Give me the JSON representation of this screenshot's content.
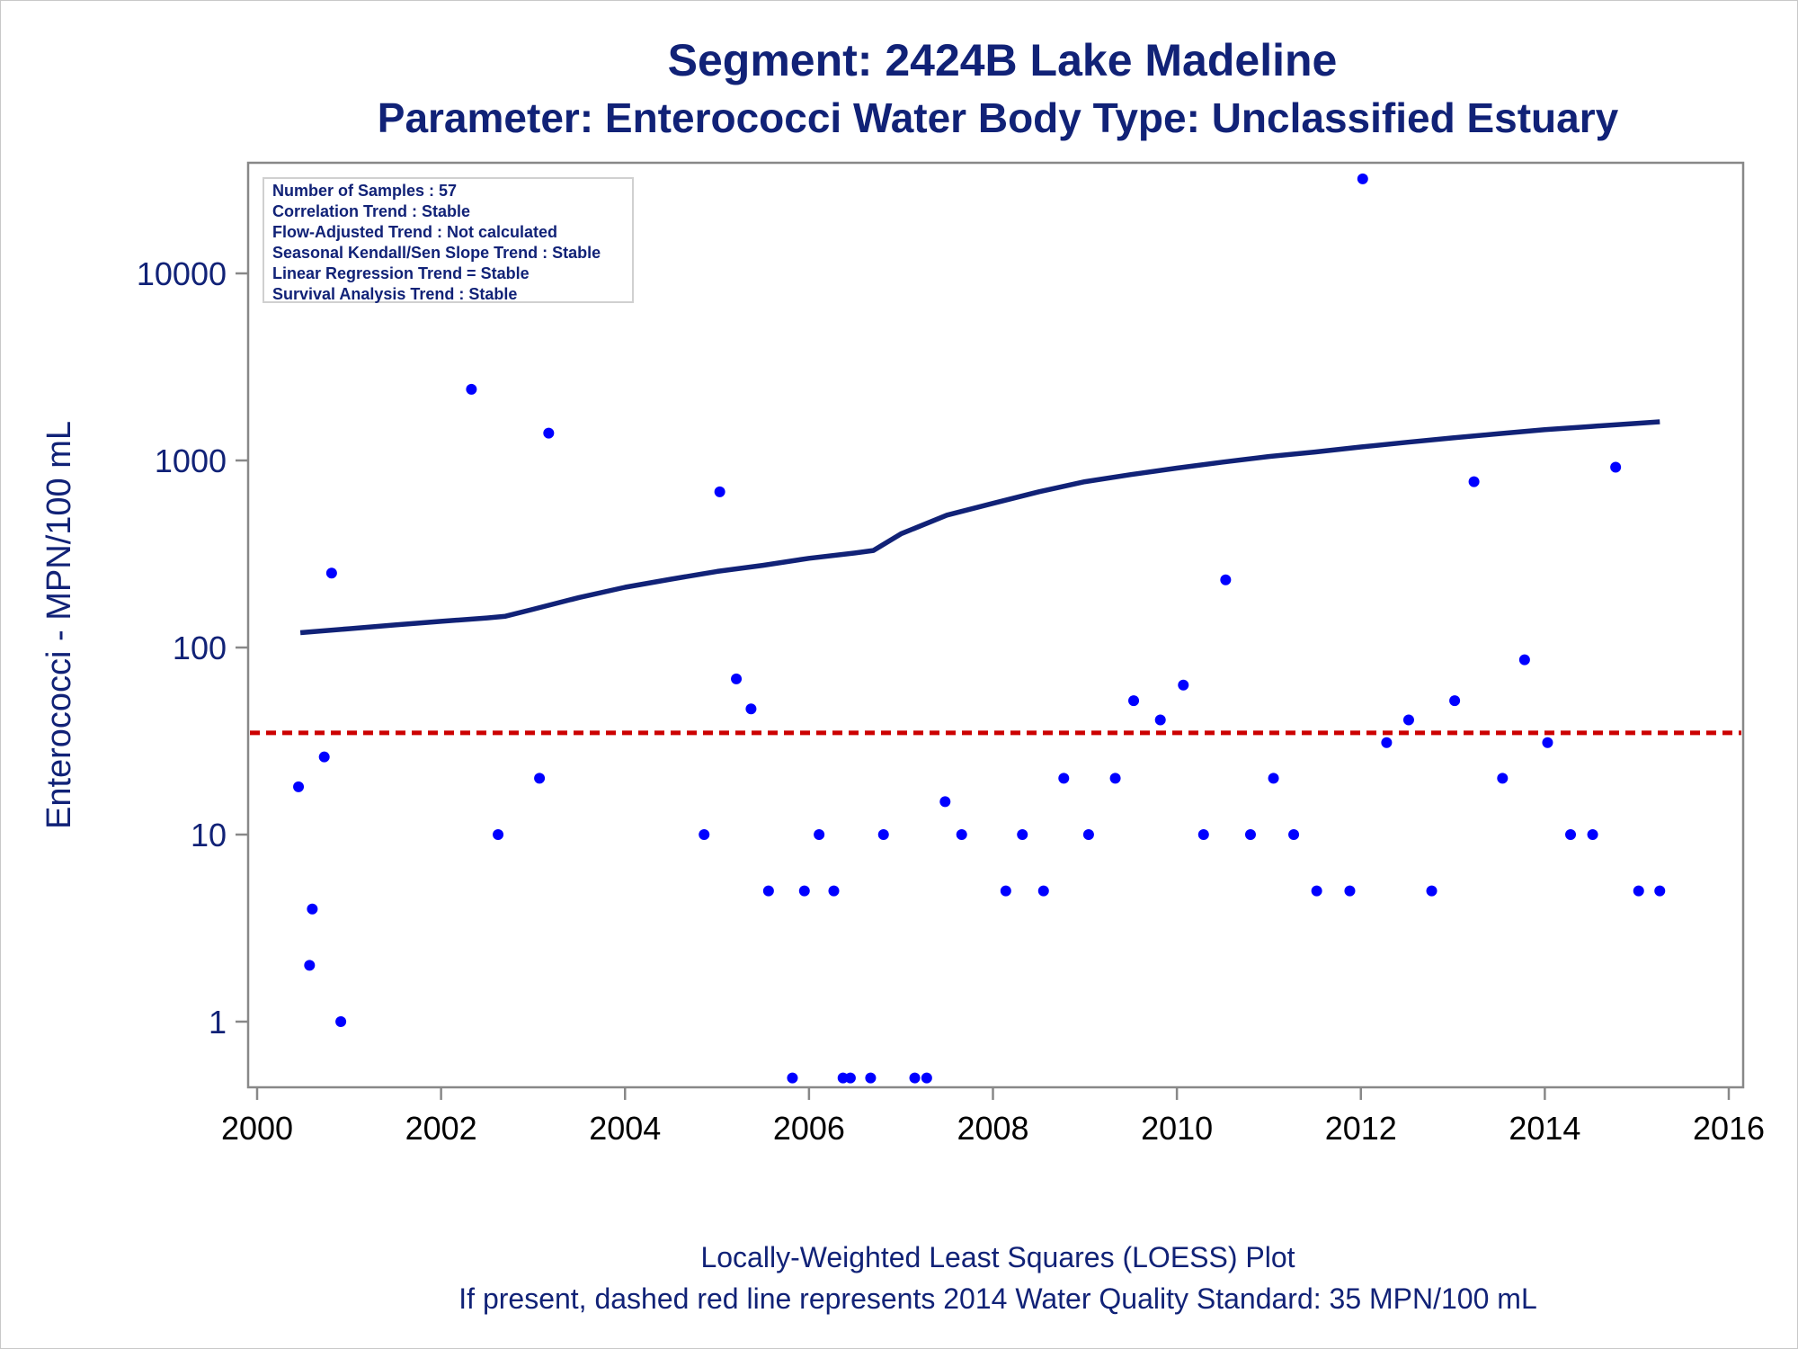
{
  "title": "Segment: 2424B  Lake Madeline",
  "subtitle": "Parameter: Enterococci   Water Body Type: Unclassified Estuary",
  "footnote1": "Locally-Weighted Least Squares (LOESS) Plot",
  "footnote2": "If present, dashed red line represents 2014 Water Quality Standard: 35 MPN/100 mL",
  "stats_box": [
    "Number of Samples : 57",
    "Correlation Trend : Stable",
    "Flow-Adjusted Trend : Not calculated",
    "Seasonal Kendall/Sen Slope Trend : Stable",
    "Linear Regression Trend = Stable",
    "Survival Analysis Trend : Stable"
  ],
  "colors": {
    "text": "#112277",
    "points": "#0000ff",
    "loess": "#112277",
    "standard": "#cc0000",
    "axis": "#888888"
  },
  "chart_data": {
    "type": "scatter",
    "xlabel": "",
    "ylabel": "Enterococci - MPN/100 mL",
    "x_scale": "time",
    "y_scale": "log",
    "xlim": [
      2000,
      2016
    ],
    "ylim": [
      0.45,
      35000
    ],
    "x_ticks": [
      "2000",
      "2002",
      "2004",
      "2006",
      "2008",
      "2010",
      "2012",
      "2014",
      "2016"
    ],
    "y_ticks": [
      "1",
      "10",
      "100",
      "1000",
      "10000"
    ],
    "grid": false,
    "standard_line": {
      "value": 35,
      "style": "dashed",
      "color": "#cc0000"
    },
    "series": [
      {
        "kind": "points",
        "x": [
          2000.45,
          2000.57,
          2000.6,
          2000.73,
          2000.81,
          2000.91,
          2002.33,
          2002.62,
          2003.07,
          2003.17,
          2004.86,
          2005.03,
          2005.21,
          2005.37,
          2005.56,
          2005.82,
          2005.95,
          2006.11,
          2006.27,
          2006.37,
          2006.45,
          2006.67,
          2006.81,
          2007.15,
          2007.28,
          2007.48,
          2007.66,
          2008.14,
          2008.32,
          2008.55,
          2008.77,
          2009.04,
          2009.33,
          2009.53,
          2009.82,
          2010.07,
          2010.29,
          2010.53,
          2010.8,
          2011.05,
          2011.27,
          2011.52,
          2011.88,
          2012.02,
          2012.28,
          2012.52,
          2012.77,
          2013.02,
          2013.23,
          2013.54,
          2013.78,
          2014.03,
          2014.28,
          2014.52,
          2014.77,
          2015.02,
          2015.25
        ],
        "values": [
          18,
          2,
          4,
          26,
          250,
          1,
          2400,
          10,
          20,
          1400,
          10,
          680,
          68,
          47,
          5,
          0.5,
          5,
          10,
          5,
          0.5,
          0.5,
          0.5,
          10,
          0.5,
          0.5,
          15,
          10,
          5,
          10,
          5,
          20,
          10,
          20,
          52,
          41,
          63,
          10,
          230,
          10,
          20,
          10,
          5,
          5,
          32000,
          31,
          41,
          5,
          52,
          770,
          20,
          86,
          31,
          10,
          10,
          920,
          5,
          5
        ]
      },
      {
        "kind": "loess",
        "x": [
          2000.47,
          2001.0,
          2001.5,
          2002.0,
          2002.5,
          2002.7,
          2003.0,
          2003.5,
          2004.0,
          2004.5,
          2005.0,
          2005.5,
          2006.0,
          2006.5,
          2006.7,
          2007.0,
          2007.5,
          2008.0,
          2008.5,
          2009.0,
          2009.5,
          2010.0,
          2010.5,
          2011.0,
          2011.5,
          2012.0,
          2012.5,
          2013.0,
          2013.5,
          2014.0,
          2014.5,
          2015.0,
          2015.25
        ],
        "values": [
          120,
          126,
          132,
          138,
          144,
          147,
          160,
          185,
          210,
          232,
          255,
          275,
          300,
          320,
          330,
          405,
          510,
          590,
          680,
          770,
          840,
          910,
          980,
          1050,
          1110,
          1180,
          1250,
          1320,
          1390,
          1460,
          1520,
          1580,
          1610
        ]
      }
    ]
  }
}
